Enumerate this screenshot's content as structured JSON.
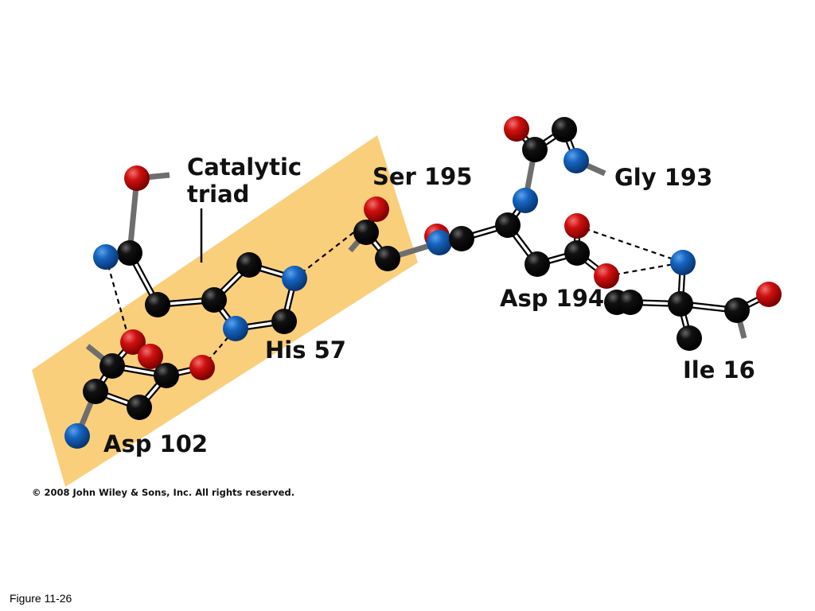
{
  "diagram": {
    "title_lines": [
      "Catalytic",
      "triad"
    ],
    "labels": [
      "Ser 195",
      "Gly 193",
      "His 57",
      "Asp 194",
      "Ile 16",
      "Asp 102"
    ]
  },
  "footer": {
    "copyright": "© 2008 John Wiley & Sons, Inc. All rights reserved.",
    "figure": "Figure 11-26"
  }
}
